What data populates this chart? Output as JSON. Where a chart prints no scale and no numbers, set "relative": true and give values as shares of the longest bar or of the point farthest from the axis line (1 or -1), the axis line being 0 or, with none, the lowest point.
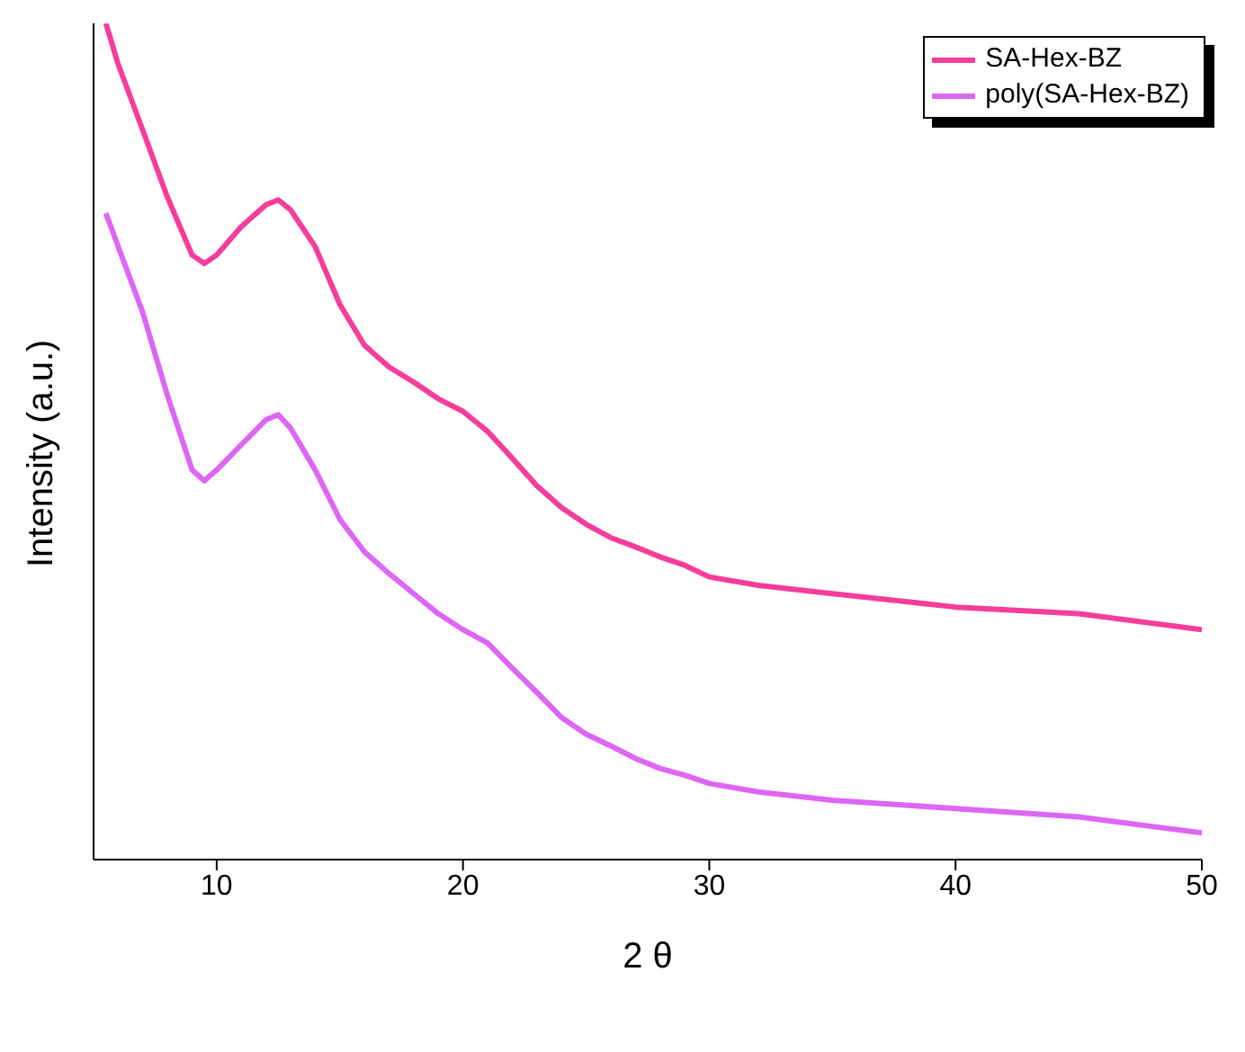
{
  "chart_data": {
    "type": "line",
    "xlabel": "2 θ",
    "ylabel": "Intensity (a.u.)",
    "relative": true,
    "xlim": [
      5,
      50
    ],
    "xticks": [
      10,
      20,
      30,
      40,
      50
    ],
    "grid": false,
    "legend": "top right",
    "marker": "none",
    "line_style": "solid",
    "x": [
      5.5,
      6,
      7,
      8,
      9,
      9.5,
      10,
      11,
      12,
      12.5,
      13,
      14,
      15,
      16,
      17,
      18,
      19,
      20,
      21,
      22,
      23,
      24,
      25,
      26,
      27,
      28,
      29,
      30,
      32,
      35,
      40,
      45,
      50
    ],
    "series": [
      {
        "name": "SA-Hex-BZ",
        "color": "#f53d9c",
        "values": [
          1.0,
          0.951,
          0.872,
          0.792,
          0.723,
          0.713,
          0.723,
          0.757,
          0.783,
          0.789,
          0.777,
          0.733,
          0.664,
          0.615,
          0.589,
          0.571,
          0.551,
          0.536,
          0.512,
          0.48,
          0.447,
          0.421,
          0.401,
          0.385,
          0.374,
          0.362,
          0.352,
          0.338,
          0.328,
          0.318,
          0.302,
          0.294,
          0.275
        ]
      },
      {
        "name": "poly(SA-Hex-BZ)",
        "color": "#dd66f5",
        "values": [
          0.773,
          0.733,
          0.654,
          0.555,
          0.466,
          0.453,
          0.466,
          0.496,
          0.526,
          0.532,
          0.516,
          0.466,
          0.407,
          0.368,
          0.342,
          0.318,
          0.294,
          0.275,
          0.259,
          0.229,
          0.2,
          0.17,
          0.15,
          0.136,
          0.121,
          0.109,
          0.101,
          0.091,
          0.081,
          0.071,
          0.061,
          0.051,
          0.032
        ]
      }
    ]
  }
}
